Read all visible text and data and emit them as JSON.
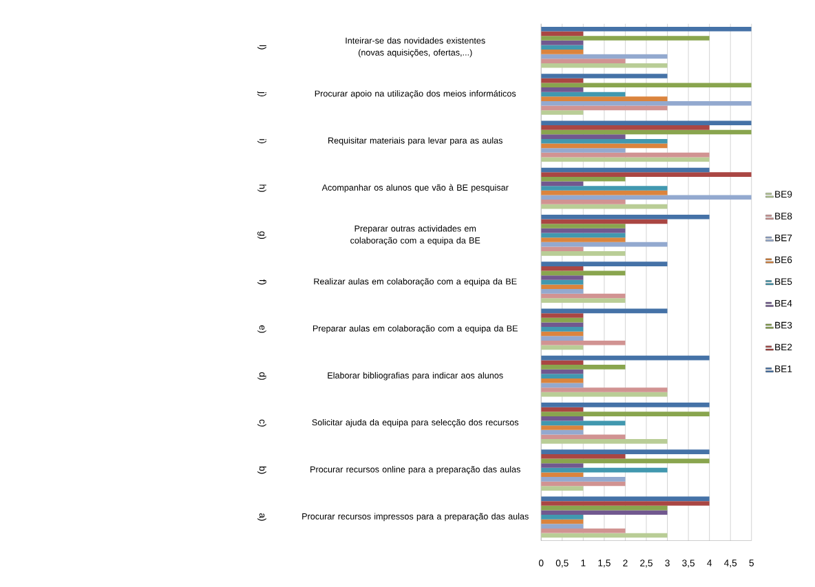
{
  "chart_data": {
    "type": "bar",
    "orientation": "horizontal",
    "categories": [
      "Inteirar-se das novidades existentes (novas aquisições, ofertas,...)",
      "Procurar apoio na utilização dos meios informáticos",
      "Requisitar materiais para levar para as aulas",
      "Acompanhar os alunos que vão à BE pesquisar",
      "Preparar outras actividades em colaboração com a equipa da BE",
      "Realizar aulas em colaboração com a equipa da BE",
      "Preparar aulas em colaboração com a equipa da BE",
      "Elaborar bibliografias para indicar aos alunos",
      "Solicitar ajuda da equipa para selecção dos recursos",
      "Procurar recursos online para a preparação das aulas",
      "Procurar recursos impressos para a preparação das aulas"
    ],
    "annotations": [
      "l)",
      "j)",
      "i)",
      "h)",
      "g)",
      "f)",
      "e)",
      "d)",
      "c)",
      "b)",
      "a)"
    ],
    "series": [
      {
        "name": "BE1",
        "color": "#4572a7",
        "values": [
          5,
          3,
          5,
          4,
          4,
          3,
          3,
          4,
          4,
          4,
          4
        ]
      },
      {
        "name": "BE2",
        "color": "#aa4643",
        "values": [
          1,
          1,
          4,
          5,
          3,
          1,
          1,
          1,
          1,
          2,
          4
        ]
      },
      {
        "name": "BE3",
        "color": "#89a54e",
        "values": [
          4,
          5,
          5,
          2,
          2,
          2,
          1,
          2,
          4,
          4,
          3
        ]
      },
      {
        "name": "BE4",
        "color": "#71588f",
        "values": [
          1,
          1,
          2,
          1,
          2,
          1,
          1,
          1,
          1,
          1,
          3
        ]
      },
      {
        "name": "BE5",
        "color": "#4198af",
        "values": [
          1,
          2,
          3,
          3,
          2,
          1,
          1,
          1,
          2,
          3,
          1
        ]
      },
      {
        "name": "BE6",
        "color": "#db843d",
        "values": [
          1,
          3,
          3,
          3,
          2,
          1,
          1,
          1,
          1,
          1,
          1
        ]
      },
      {
        "name": "BE7",
        "color": "#93a9cf",
        "values": [
          3,
          5,
          2,
          5,
          3,
          1,
          1,
          1,
          1,
          2,
          1
        ]
      },
      {
        "name": "BE8",
        "color": "#d19392",
        "values": [
          2,
          3,
          4,
          2,
          1,
          2,
          2,
          3,
          2,
          2,
          2
        ]
      },
      {
        "name": "BE9",
        "color": "#b9cd96",
        "values": [
          3,
          1,
          4,
          3,
          2,
          2,
          1,
          3,
          3,
          1,
          3
        ]
      }
    ],
    "xlim": [
      0,
      5
    ],
    "xticks": [
      0,
      {
        "value": 0.5,
        "label": "0,5"
      },
      1,
      {
        "value": 1.5,
        "label": "1,5"
      },
      2,
      {
        "value": 2.5,
        "label": "2,5"
      },
      3,
      {
        "value": 3.5,
        "label": "3,5"
      },
      4,
      {
        "value": 4.5,
        "label": "4,5"
      },
      5
    ],
    "grid": "x",
    "legend": "right"
  }
}
